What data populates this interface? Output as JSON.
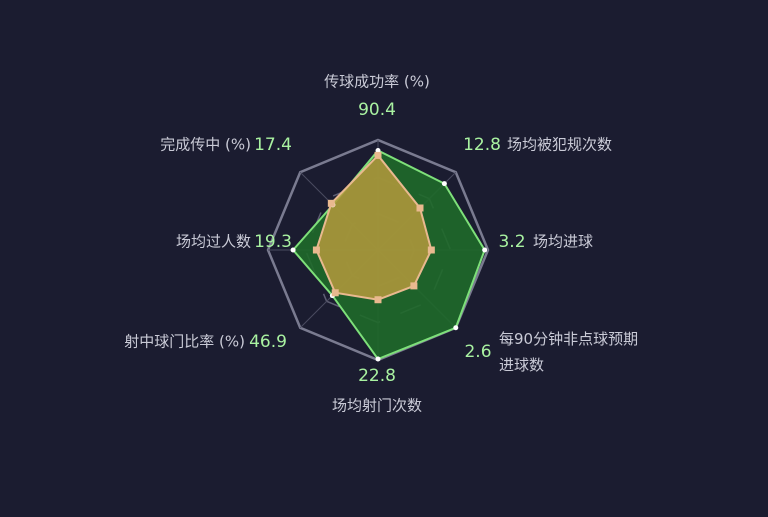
{
  "chart_data": {
    "type": "radar",
    "axes": [
      {
        "label": "传球成功率 (%)",
        "rlim": [
          0,
          100
        ]
      },
      {
        "label": "场均被犯规次数",
        "rlim": [
          0,
          15
        ]
      },
      {
        "label": "场均进球",
        "rlim": [
          0,
          3.3
        ]
      },
      {
        "label": "每90分钟非点球预期进球数",
        "rlim": [
          0,
          2.6
        ]
      },
      {
        "label": "场均射门次数",
        "rlim": [
          0,
          23
        ]
      },
      {
        "label": "射中球门比率 (%)",
        "rlim": [
          0,
          80
        ]
      },
      {
        "label": "场均过人数",
        "rlim": [
          0,
          25
        ]
      },
      {
        "label": "完成传中 (%)",
        "rlim": [
          0,
          30
        ]
      }
    ],
    "series": [
      {
        "color": "#7ee07a",
        "values": [
          90.4,
          12.8,
          3.2,
          2.6,
          22.8,
          46.9,
          19.3,
          17.4
        ]
      },
      {
        "color": "#e9b98f",
        "values": [
          86,
          8.1,
          1.6,
          1.2,
          10.4,
          44,
          14,
          18
        ]
      }
    ]
  }
}
